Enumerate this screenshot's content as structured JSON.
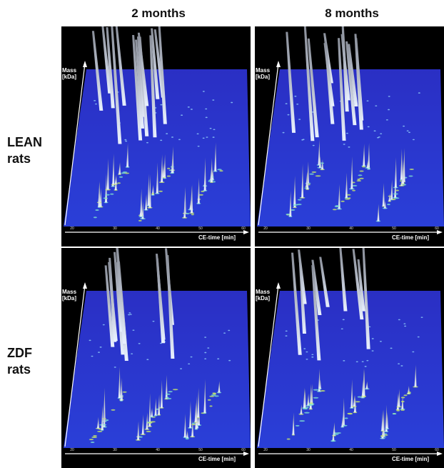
{
  "columns": [
    "2 months",
    "8 months"
  ],
  "rows": [
    [
      "LEAN",
      "rats"
    ],
    [
      "ZDF",
      "rats"
    ]
  ],
  "axes": {
    "mass_label": [
      "Mass",
      "[kDa]"
    ],
    "time_label": "CE-time [min]",
    "time_ticks": [
      "20",
      "30",
      "40",
      "50",
      "60"
    ]
  }
}
